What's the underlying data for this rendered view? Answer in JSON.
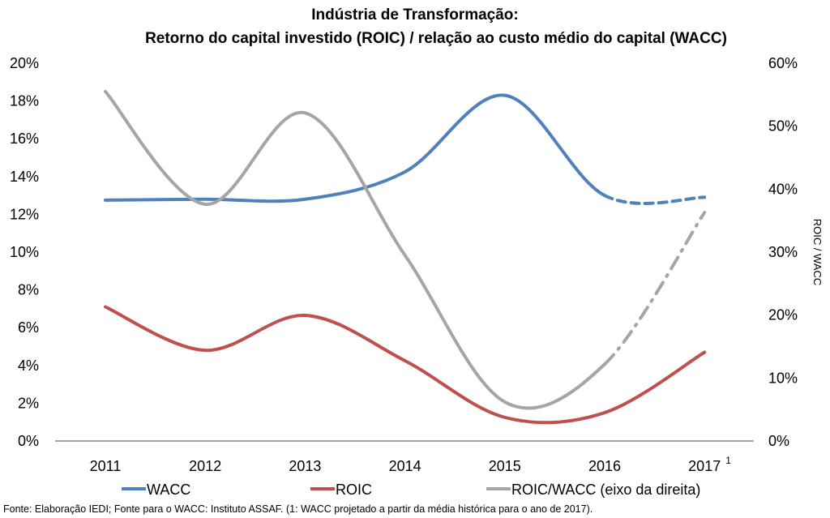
{
  "chart_data": {
    "type": "line",
    "title": "Indústria de Transformação:",
    "subtitle": "Retorno do capital investido (ROIC) / relação ao custo médio do capital (WACC)",
    "categories": [
      "2011",
      "2012",
      "2013",
      "2014",
      "2015",
      "2016",
      "2017"
    ],
    "category_footnote": {
      "category": "2017",
      "marker": "1"
    },
    "y_left": {
      "range": [
        0,
        20
      ],
      "ticks": [
        0,
        2,
        4,
        6,
        8,
        10,
        12,
        14,
        16,
        18,
        20
      ],
      "tick_labels": [
        "0%",
        "2%",
        "4%",
        "6%",
        "8%",
        "10%",
        "12%",
        "14%",
        "16%",
        "18%",
        "20%"
      ],
      "label": ""
    },
    "y_right": {
      "range": [
        0,
        60
      ],
      "ticks": [
        0,
        10,
        20,
        30,
        40,
        50,
        60
      ],
      "tick_labels": [
        "0%",
        "10%",
        "20%",
        "30%",
        "40%",
        "50%",
        "60%"
      ],
      "label": "ROIC / WACC"
    },
    "grid": false,
    "smooth": true,
    "series": [
      {
        "name": "WACC",
        "axis": "left",
        "color": "#4F81BD",
        "values": [
          12.75,
          12.8,
          12.8,
          14.25,
          18.3,
          13.0,
          12.9
        ],
        "projected_from_index": 5,
        "projected_style": "dash"
      },
      {
        "name": "ROIC",
        "axis": "left",
        "color": "#C0504D",
        "values": [
          7.1,
          4.8,
          6.65,
          4.25,
          1.25,
          1.5,
          4.7
        ],
        "projected_from_index": null,
        "projected_style": null
      },
      {
        "name": "ROIC/WACC (eixo da direita)",
        "axis": "right",
        "color": "#A5A5A5",
        "values": [
          55.5,
          37.6,
          52.1,
          29.5,
          6.2,
          12.2,
          36.3
        ],
        "projected_from_index": 5,
        "projected_style": "dash-dot"
      }
    ],
    "legend": {
      "position": "bottom",
      "entries": [
        "WACC",
        "ROIC",
        "ROIC/WACC (eixo da direita)"
      ]
    }
  },
  "footnote": "Fonte: Elaboração IEDI; Fonte para o WACC: Instituto ASSAF. (1: WACC projetado a partir da média histórica para o ano de 2017)."
}
